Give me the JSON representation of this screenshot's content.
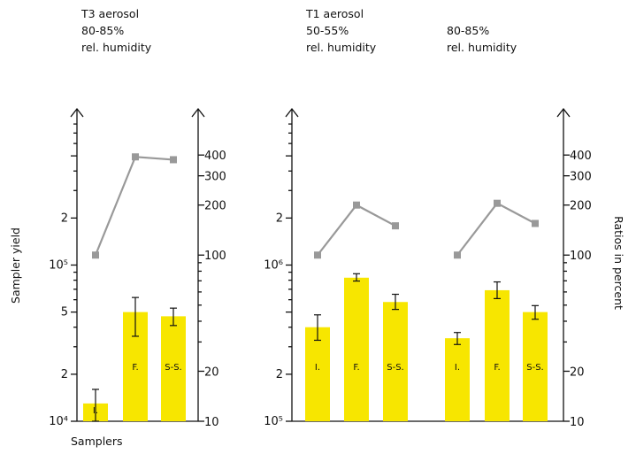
{
  "colors": {
    "bar": "#f7e600",
    "ratio_line": "#999999",
    "axis": "#111111"
  },
  "headers": {
    "left_line1": "T3 aerosol",
    "left_line2": "80-85%",
    "left_line3": "rel. humidity",
    "mid_line1": "T1 aerosol",
    "mid_line2": "50-55%",
    "mid_line3": "rel. humidity",
    "right_line1": "80-85%",
    "right_line2": "rel. humidity"
  },
  "chart_data": [
    {
      "type": "bar",
      "panel": "left",
      "categories": [
        "I.",
        "F.",
        "S-S."
      ],
      "ylabel": "Sampler yield",
      "xlabel": "Samplers",
      "ylim": [
        10000,
        1000000
      ],
      "yscale": "log",
      "y_tick_labels": [
        "10⁴",
        "2",
        "5",
        "10⁵",
        "2"
      ],
      "series": [
        {
          "values": [
            13000,
            50000,
            47000
          ],
          "error_low": [
            10000,
            35000,
            41000
          ],
          "error_high": [
            16000,
            62000,
            53000
          ]
        }
      ],
      "ratio_axis": {
        "label": "Ratios in percent",
        "ylim": [
          10,
          500
        ],
        "yscale": "log",
        "tick_labels": [
          "10",
          "20",
          "100",
          "200",
          "300",
          "400"
        ]
      },
      "ratio_series": {
        "values": [
          100,
          390,
          375
        ]
      }
    },
    {
      "type": "bar",
      "panel": "right",
      "categories": [
        "I.",
        "F.",
        "S-S.",
        "I.",
        "F.",
        "S-S."
      ],
      "ylabel": "",
      "ylim": [
        100000,
        10000000
      ],
      "yscale": "log",
      "y_tick_labels": [
        "10⁵",
        "2",
        "10⁶",
        "2"
      ],
      "series": [
        {
          "values": [
            400000,
            830000,
            580000,
            340000,
            690000,
            500000
          ],
          "error_low": [
            330000,
            790000,
            520000,
            310000,
            610000,
            450000
          ],
          "error_high": [
            480000,
            880000,
            650000,
            370000,
            780000,
            550000
          ]
        }
      ],
      "ratio_axis": {
        "label": "Ratios in percent",
        "ylim": [
          10,
          500
        ],
        "yscale": "log",
        "tick_labels": [
          "10",
          "20",
          "100",
          "200",
          "300",
          "400"
        ]
      },
      "ratio_series": {
        "values": [
          100,
          200,
          150,
          100,
          205,
          155
        ]
      }
    }
  ]
}
